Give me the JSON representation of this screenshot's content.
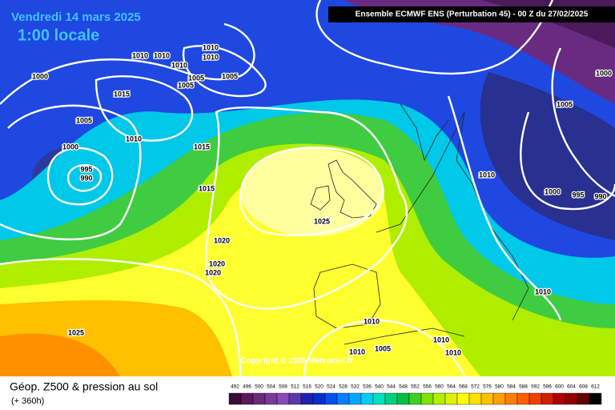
{
  "header": {
    "date": "Vendredi 14 mars 2025",
    "time": "1:00 locale",
    "model": "Ensemble ECMWF ENS  (Perturbation 45)  -  00 Z du 27/02/2025"
  },
  "map": {
    "copyright": "Copyright © 2025 Meteociel.fr",
    "isobar_labels": [
      "1000",
      "1015",
      "1005",
      "1010",
      "1000",
      "995",
      "990",
      "1015",
      "1015",
      "1020",
      "1020",
      "1020",
      "1025",
      "1025",
      "1010",
      "1000",
      "995",
      "990",
      "1005",
      "1000",
      "1010",
      "1010",
      "1010",
      "1005",
      "1010",
      "1010",
      "1005",
      "1005",
      "1005",
      "1010",
      "1010",
      "1010",
      "1010",
      "1010"
    ]
  },
  "footer": {
    "title": "Géop. Z500 & pression au sol",
    "subtitle": "(+ 360h)"
  },
  "legend": {
    "values": [
      492,
      496,
      500,
      504,
      508,
      512,
      516,
      520,
      524,
      528,
      532,
      536,
      540,
      544,
      548,
      552,
      556,
      560,
      564,
      568,
      572,
      576,
      580,
      584,
      588,
      592,
      596,
      600,
      604,
      608,
      612
    ],
    "colors": [
      "#3a0a3a",
      "#5a1a5a",
      "#6a2a7a",
      "#7a3a9a",
      "#8a4aba",
      "#5a3aaa",
      "#2020b0",
      "#0030d0",
      "#0050f0",
      "#0080ff",
      "#00a8ff",
      "#00d0f0",
      "#00e0c0",
      "#00d080",
      "#00c040",
      "#40d020",
      "#80e000",
      "#b0f000",
      "#e0f000",
      "#ffff00",
      "#ffe000",
      "#ffc000",
      "#ffa000",
      "#ff8000",
      "#ff6000",
      "#f04000",
      "#d02000",
      "#b00000",
      "#900000",
      "#600000",
      "#000000"
    ]
  }
}
